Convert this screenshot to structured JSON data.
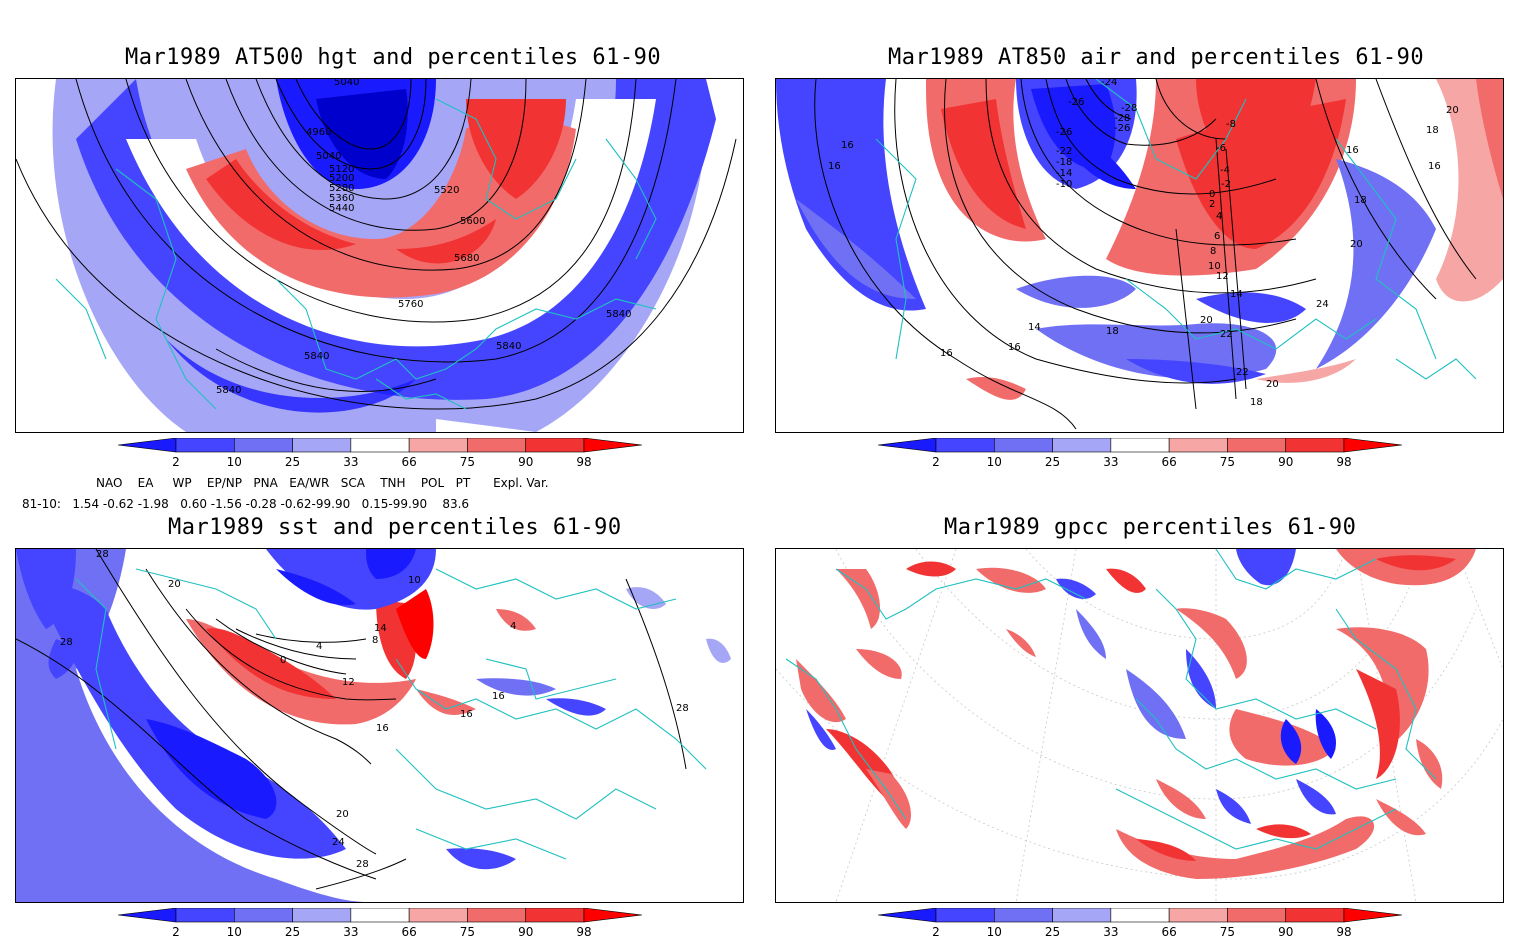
{
  "panels": [
    {
      "title": "Mar1989 AT500 hgt and percentiles 61-90",
      "contour_labels": [
        "5840",
        "5840",
        "5840",
        "5840",
        "5760",
        "5680",
        "5600",
        "5520",
        "5440",
        "5360",
        "5280",
        "5200",
        "5120",
        "5040",
        "4960",
        "5040"
      ]
    },
    {
      "title": "Mar1989 AT850 air and percentiles 61-90",
      "contour_labels": [
        "16",
        "16",
        "16",
        "16",
        "14",
        "18",
        "20",
        "22",
        "22",
        "20",
        "18",
        "24",
        "20",
        "18",
        "20",
        "18",
        "16",
        "16",
        "14",
        "12",
        "10",
        "8",
        "6",
        "4",
        "2",
        "0",
        "-2",
        "-4",
        "-6",
        "-8",
        "-10",
        "-14",
        "-18",
        "-22",
        "-26",
        "-26",
        "-28",
        "-24",
        "-28",
        "-26"
      ]
    },
    {
      "title": "Mar1989 sst and percentiles 61-90",
      "contour_labels": [
        "28",
        "20",
        "28",
        "28",
        "16",
        "12",
        "4",
        "0",
        "14",
        "8",
        "16",
        "16",
        "20",
        "24",
        "28",
        "10",
        "4"
      ]
    },
    {
      "title": "Mar1989 gpcc percentiles 61-90",
      "contour_labels": []
    }
  ],
  "colorbar": {
    "ticks": [
      "2",
      "10",
      "25",
      "33",
      "66",
      "75",
      "90",
      "98"
    ],
    "colors": [
      "#1a1aff",
      "#4545ff",
      "#7070f5",
      "#a6a6f7",
      "#ffffff",
      "#f7a6a6",
      "#f26b6b",
      "#f23333",
      "#ff0000"
    ]
  },
  "indices": {
    "header": "NAO    EA     WP    EP/NP   PNA   EA/WR   SCA    TNH    POL   PT      Expl. Var.",
    "row": "81-10:   1.54 -0.62 -1.98   0.60 -1.56 -0.28 -0.62-99.90   0.15-99.90    83.6"
  }
}
